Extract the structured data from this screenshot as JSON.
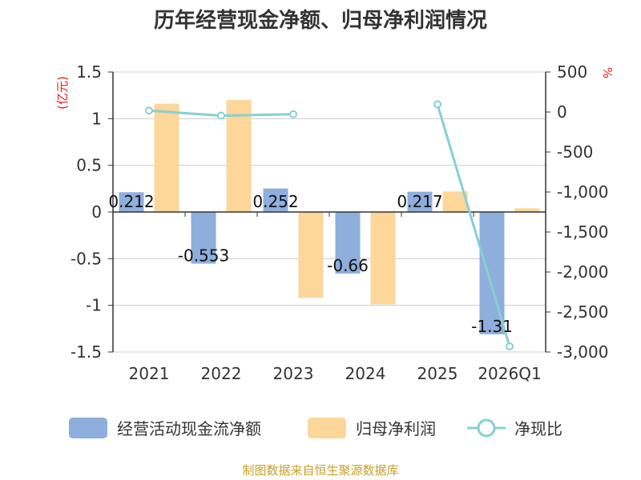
{
  "chart_data": {
    "type": "bar",
    "title": "历年经营现金净额、归母净利润情况",
    "categories": [
      "2021",
      "2022",
      "2023",
      "2024",
      "2025",
      "2026Q1"
    ],
    "y_left": {
      "unit": "(亿元)",
      "range": [
        -1.5,
        1.5
      ],
      "ticks": [
        "1.5",
        "1",
        "0.5",
        "0",
        "-0.5",
        "-1",
        "-1.5"
      ]
    },
    "y_right": {
      "unit": "%",
      "range": [
        -3000,
        500
      ],
      "ticks": [
        "500",
        "0",
        "-500",
        "-1,000",
        "-1,500",
        "-2,000",
        "-2,500",
        "-3,000"
      ]
    },
    "series": [
      {
        "name": "经营活动现金流净额",
        "type": "bar",
        "axis": "left",
        "color": "#8eaedc",
        "values": [
          0.212,
          -0.553,
          0.252,
          -0.66,
          0.217,
          -1.31
        ],
        "labels": [
          "0.212",
          "-0.553",
          "0.252",
          "-0.66",
          "0.217",
          "-1.31"
        ]
      },
      {
        "name": "归母净利润",
        "type": "bar",
        "axis": "left",
        "color": "#fdd69a",
        "values": [
          1.16,
          1.2,
          -0.92,
          -0.99,
          0.22,
          0.04
        ]
      },
      {
        "name": "净现比",
        "type": "line",
        "axis": "right",
        "color": "#86d0d2",
        "values": [
          18,
          -46,
          -27,
          null,
          96,
          -2930
        ]
      }
    ],
    "grid": true,
    "legend_position": "bottom"
  },
  "source": "制图数据来自恒生聚源数据库"
}
